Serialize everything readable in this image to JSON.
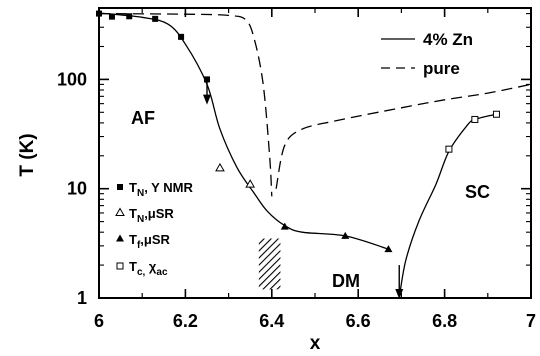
{
  "chart_data": {
    "type": "scatter",
    "xlabel": "x",
    "ylabel": "T (K)",
    "xlim": [
      6.0,
      7.0
    ],
    "ylim": [
      1,
      450
    ],
    "yscale": "log",
    "grid": false,
    "x_ticks": [
      "6",
      "6.2",
      "6.4",
      "6.6",
      "6.8",
      "7"
    ],
    "y_ticks": [
      "1",
      "10",
      "100"
    ],
    "legend_position": "top-right",
    "line_legend": [
      {
        "label": "4% Zn",
        "style": "solid"
      },
      {
        "label": "pure",
        "style": "dashed"
      }
    ],
    "marker_legend": [
      {
        "marker": "filled-square",
        "main": "T",
        "sub": "N",
        "suffix": ", Y NMR"
      },
      {
        "marker": "open-triangle",
        "main": "T",
        "sub": "N",
        "suffix": ",μSR"
      },
      {
        "marker": "filled-triangle",
        "main": "T",
        "sub": "f",
        "suffix": ",μSR"
      },
      {
        "marker": "open-square",
        "main": "T",
        "sub": "c,",
        "suffix": " χ",
        "suffix_sub": "ac"
      }
    ],
    "region_labels": [
      "AF",
      "DM",
      "SC"
    ],
    "series": [
      {
        "marker": "filled-square",
        "points": [
          [
            6.0,
            400
          ],
          [
            6.03,
            375
          ],
          [
            6.07,
            378
          ],
          [
            6.13,
            358
          ],
          [
            6.19,
            245
          ],
          [
            6.25,
            100
          ]
        ]
      },
      {
        "marker": "open-triangle",
        "points": [
          [
            6.28,
            15.5
          ],
          [
            6.35,
            11
          ]
        ]
      },
      {
        "marker": "filled-triangle",
        "points": [
          [
            6.43,
            4.5
          ],
          [
            6.57,
            3.7
          ],
          [
            6.67,
            2.8
          ]
        ]
      },
      {
        "marker": "open-square",
        "points": [
          [
            6.81,
            23
          ],
          [
            6.87,
            43
          ],
          [
            6.92,
            48
          ]
        ]
      }
    ],
    "curves": [
      {
        "name": "4% Zn",
        "style": "solid",
        "points": [
          [
            6.0,
            405
          ],
          [
            6.1,
            370
          ],
          [
            6.16,
            320
          ],
          [
            6.2,
            210
          ],
          [
            6.25,
            90
          ],
          [
            6.28,
            35
          ],
          [
            6.32,
            15.5
          ],
          [
            6.36,
            9
          ],
          [
            6.39,
            6.2
          ],
          [
            6.43,
            4.6
          ],
          [
            6.47,
            4.0
          ],
          [
            6.57,
            3.7
          ],
          [
            6.67,
            2.8
          ]
        ]
      },
      {
        "name": "4% Zn",
        "style": "solid",
        "points": [
          [
            6.695,
            1.0
          ],
          [
            6.71,
            2.2
          ],
          [
            6.74,
            5
          ],
          [
            6.78,
            11
          ],
          [
            6.81,
            22
          ],
          [
            6.85,
            37
          ],
          [
            6.87,
            43
          ],
          [
            6.92,
            48
          ]
        ]
      },
      {
        "name": "pure",
        "style": "dashed",
        "points": [
          [
            6.0,
            400
          ],
          [
            6.2,
            395
          ],
          [
            6.3,
            385
          ],
          [
            6.34,
            350
          ],
          [
            6.36,
            230
          ],
          [
            6.38,
            90
          ],
          [
            6.395,
            20
          ],
          [
            6.4,
            8.5
          ]
        ]
      },
      {
        "name": "pure",
        "style": "dashed",
        "points": [
          [
            6.41,
            10
          ],
          [
            6.43,
            25
          ],
          [
            6.47,
            35
          ],
          [
            6.55,
            42
          ],
          [
            6.7,
            55
          ],
          [
            6.8,
            65
          ],
          [
            6.9,
            75
          ],
          [
            7.0,
            90
          ]
        ]
      }
    ],
    "arrows": [
      {
        "x": 6.25,
        "from_T": 100,
        "to_T": 60
      },
      {
        "x": 6.695,
        "from_T": 2.0,
        "to_T": 1.0
      }
    ],
    "hatched_region": {
      "x_from": 6.37,
      "x_to": 6.42,
      "T_from": 1.2,
      "T_to": 3.5
    }
  }
}
